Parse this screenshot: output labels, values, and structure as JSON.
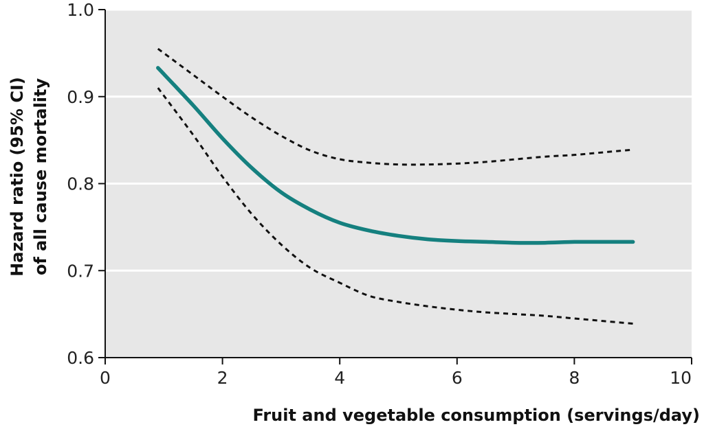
{
  "chart_data": {
    "type": "line",
    "title": "",
    "xlabel": "Fruit and vegetable consumption (servings/day)",
    "ylabel_line1": "Hazard ratio (95% CI)",
    "ylabel_line2": "of all cause mortality",
    "xlim": [
      0,
      10
    ],
    "ylim": [
      0.6,
      1.0
    ],
    "x_ticks": [
      0,
      2,
      4,
      6,
      8,
      10
    ],
    "x_tick_labels": [
      "0",
      "2",
      "4",
      "6",
      "8",
      "10"
    ],
    "y_ticks": [
      0.6,
      0.7,
      0.8,
      0.9,
      1.0
    ],
    "y_tick_labels": [
      "0.6",
      "0.7",
      "0.8",
      "0.9",
      "1.0"
    ],
    "grid": "horizontal",
    "legend": "none",
    "series": [
      {
        "role": "estimate",
        "style": "solid",
        "color": "#15807f",
        "x": [
          0.9,
          1.5,
          2,
          2.5,
          3,
          3.5,
          4,
          4.5,
          5,
          5.5,
          6,
          6.5,
          7,
          7.5,
          8,
          8.5,
          9
        ],
        "y": [
          0.933,
          0.89,
          0.852,
          0.818,
          0.79,
          0.77,
          0.755,
          0.746,
          0.74,
          0.736,
          0.734,
          0.733,
          0.732,
          0.732,
          0.733,
          0.733,
          0.733
        ]
      },
      {
        "role": "upper_ci",
        "style": "dashed",
        "color": "#111111",
        "x": [
          0.9,
          1.5,
          2,
          2.5,
          3,
          3.5,
          4,
          4.5,
          5,
          5.5,
          6,
          6.5,
          7,
          7.5,
          8,
          8.5,
          9
        ],
        "y": [
          0.955,
          0.925,
          0.9,
          0.876,
          0.855,
          0.838,
          0.828,
          0.824,
          0.822,
          0.822,
          0.823,
          0.825,
          0.828,
          0.831,
          0.833,
          0.836,
          0.839
        ]
      },
      {
        "role": "lower_ci",
        "style": "dashed",
        "color": "#111111",
        "x": [
          0.9,
          1.5,
          2,
          2.5,
          3,
          3.5,
          4,
          4.5,
          5,
          5.5,
          6,
          6.5,
          7,
          7.5,
          8,
          8.5,
          9
        ],
        "y": [
          0.91,
          0.856,
          0.808,
          0.765,
          0.73,
          0.703,
          0.686,
          0.671,
          0.664,
          0.659,
          0.655,
          0.652,
          0.65,
          0.648,
          0.645,
          0.642,
          0.639
        ]
      }
    ],
    "colors": {
      "plot_background": "#e7e7e7",
      "gridline": "#ffffff",
      "axis": "#111111"
    }
  }
}
